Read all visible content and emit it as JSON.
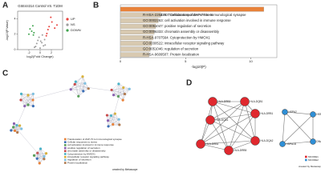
{
  "panel_labels": [
    "A",
    "B",
    "C",
    "D"
  ],
  "chart_data": [
    {
      "type": "scatter",
      "title": "GSE44314 Control VS. T1DM",
      "x_label": "log2(Fold Change)",
      "y_label": "-log10(P.Value)",
      "xlim": [
        -4,
        4
      ],
      "ylim": [
        0,
        5
      ],
      "xticks": [
        -2,
        0,
        2
      ],
      "yticks": [
        0,
        2,
        4
      ],
      "series": [
        {
          "name": "UP",
          "color": "#e8413c",
          "x": [
            1.2,
            1.6,
            2.1,
            1.4,
            2.6,
            1.9,
            1.1,
            3.0
          ],
          "values": [
            2.1,
            3.0,
            3.6,
            2.6,
            2.8,
            4.2,
            1.8,
            3.2
          ]
        },
        {
          "name": "NS",
          "color": "#9e9e9e",
          "x": [
            -0.8,
            -0.4,
            0.0,
            0.3,
            0.6,
            -0.2,
            0.4,
            -0.6,
            0.1,
            0.8,
            -1.0,
            0.9
          ],
          "values": [
            0.4,
            1.2,
            0.2,
            0.9,
            0.5,
            1.6,
            1.9,
            0.8,
            1.1,
            1.3,
            0.3,
            0.6
          ]
        },
        {
          "name": "DOWN",
          "color": "#3fa34d",
          "x": [
            -1.2,
            -1.5,
            -2.0,
            -1.3,
            -1.8,
            -1.1
          ],
          "values": [
            1.9,
            2.4,
            2.0,
            3.1,
            2.7,
            2.2
          ]
        }
      ]
    },
    {
      "type": "bar",
      "x_label": "-log10(P)",
      "orientation": "horizontal",
      "categories": [
        "R-HSA-202430: Translocation of ZAP-70 to Immunological synapse",
        "R-HSA-2262752: Cellular responses to stress",
        "GO:0002263: cell activation involved in immune response",
        "GO:0051047: positive regulation of secretion",
        "GO:0006333: chromatin assembly or disassembly",
        "R-HSA-9707564: Cytoprotection by HMOX1",
        "GO:0030522: intracellular receptor signaling pathway",
        "GO:0051046: regulation of secretion",
        "R-HSA-9609507: Protein localization"
      ],
      "values": [
        11,
        3.1,
        2.9,
        2.7,
        2.6,
        2.5,
        2.4,
        2.3,
        2.2
      ],
      "colors": [
        "#e8823a",
        "#d8c9b0",
        "#d8c9b0",
        "#d8c9b0",
        "#d8c9b0",
        "#d8c9b0",
        "#d8c9b0",
        "#d8c9b0",
        "#d8c9b0"
      ],
      "xlim": [
        0,
        12
      ],
      "xticks": [
        0,
        5,
        10
      ]
    }
  ],
  "network_c": {
    "legend": [
      {
        "label": "Translocation of ZAP-70 to Immunological synapse",
        "color": "#e8823a"
      },
      {
        "label": "Cellular responses to stress",
        "color": "#3b6fb6"
      },
      {
        "label": "cell activation involved in immune response",
        "color": "#5aa05a"
      },
      {
        "label": "positive regulation of secretion",
        "color": "#8a5fb0"
      },
      {
        "label": "chromatin assembly or disassembly",
        "color": "#c94a4a"
      },
      {
        "label": "Cytoprotection by HMOX1",
        "color": "#4bb3c8"
      },
      {
        "label": "intracellular receptor signaling pathway",
        "color": "#d9b13b"
      },
      {
        "label": "regulation of secretion",
        "color": "#7fc0e0"
      },
      {
        "label": "Protein localization",
        "color": "#b07a4f"
      }
    ],
    "credit": "created by Metascape"
  },
  "network_d": {
    "clusters": [
      {
        "name": "MCODE1",
        "color": "#e0282e",
        "nodes": [
          "HLA-DRB3",
          "HLA-DQB1",
          "HLA-DQA1",
          "HLA-DRB1",
          "HLA-DRB4",
          "HLA-DRB5",
          "HLA-DQA2"
        ]
      },
      {
        "name": "MCODE2",
        "color": "#2f8fd6",
        "nodes": [
          "HSPA2",
          "HSPA1A",
          "HSPA1B",
          "DNAJB1"
        ]
      }
    ],
    "credit": "created by Metascape"
  }
}
